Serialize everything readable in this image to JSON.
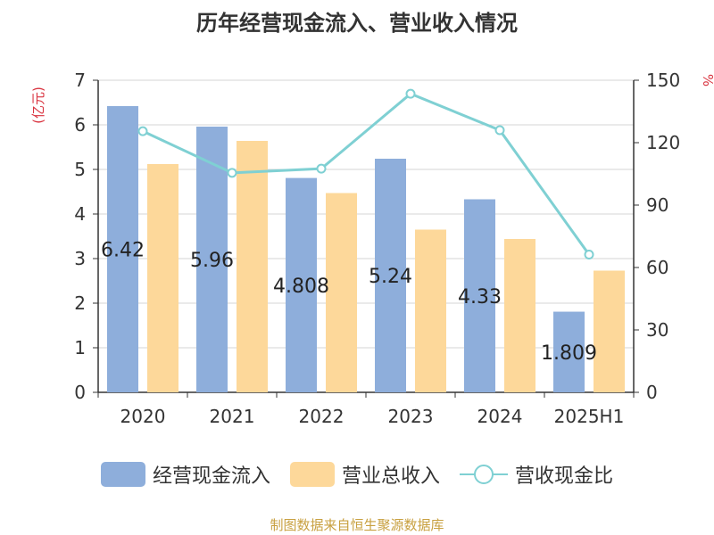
{
  "chart_data": {
    "type": "bar",
    "title": "历年经营现金流入、营业收入情况",
    "categories": [
      "2020",
      "2021",
      "2022",
      "2023",
      "2024",
      "2025H1"
    ],
    "y_left_label": "(亿元)",
    "y_right_label": "%",
    "y_left_range": [
      0,
      7
    ],
    "y_left_ticks": [
      "0",
      "1",
      "2",
      "3",
      "4",
      "5",
      "6",
      "7"
    ],
    "y_right_range": [
      0,
      150
    ],
    "y_right_ticks": [
      "0",
      "30",
      "60",
      "90",
      "120",
      "150"
    ],
    "grid": true,
    "legend_position": "bottom",
    "series": [
      {
        "name": "经营现金流入",
        "kind": "bar",
        "axis": "left",
        "color": "#8eaedb",
        "values": [
          6.42,
          5.96,
          4.808,
          5.24,
          4.33,
          1.809
        ],
        "data_labels": [
          "6.42",
          "5.96",
          "4.808",
          "5.24",
          "4.33",
          "1.809"
        ]
      },
      {
        "name": "营业总收入",
        "kind": "bar",
        "axis": "left",
        "color": "#fdd89a",
        "values": [
          5.12,
          5.64,
          4.47,
          3.65,
          3.44,
          2.73
        ]
      },
      {
        "name": "营收现金比",
        "kind": "line",
        "axis": "right",
        "color": "#7fd0d3",
        "values": [
          125.5,
          105.5,
          107.5,
          143.5,
          126.0,
          66.2
        ]
      }
    ]
  },
  "source_text": "制图数据来自恒生聚源数据库"
}
